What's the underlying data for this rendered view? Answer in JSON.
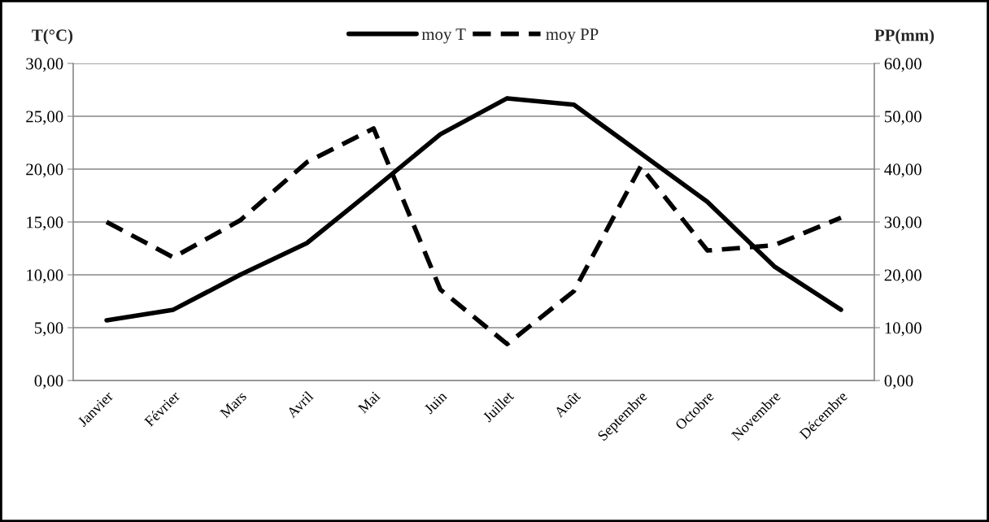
{
  "chart_data": {
    "type": "line",
    "ylabel": "T(°C)",
    "y2label": "PP(mm)",
    "categories": [
      "Janvier",
      "Février",
      "Mars",
      "Avril",
      "Mai",
      "Juin",
      "Juillet",
      "Août",
      "Septembre",
      "Octobre",
      "Novembre",
      "Décembre"
    ],
    "series": [
      {
        "name": "moy T",
        "color": "#000000",
        "line_style": "solid",
        "values": [
          5.7,
          6.7,
          10.0,
          13.0,
          18.1,
          23.3,
          26.7,
          26.1,
          21.5,
          16.9,
          10.8,
          6.7
        ]
      },
      {
        "name": "moy PP",
        "color": "#000000",
        "line_style": "dashed",
        "axis": "y2",
        "values": [
          30.0,
          23.3,
          30.3,
          41.3,
          47.7,
          17.2,
          6.9,
          16.9,
          40.5,
          24.6,
          25.6,
          30.8
        ]
      }
    ],
    "ylim": [
      0,
      30
    ],
    "yticks": [
      {
        "value": 0,
        "label": "0,00"
      },
      {
        "value": 5,
        "label": "5,00"
      },
      {
        "value": 10,
        "label": "10,00"
      },
      {
        "value": 15,
        "label": "15,00"
      },
      {
        "value": 20,
        "label": "20,00"
      },
      {
        "value": 25,
        "label": "25,00"
      },
      {
        "value": 30,
        "label": "30,00"
      }
    ],
    "y2lim": [
      0,
      60
    ],
    "y2ticks": [
      {
        "value": 0,
        "label": "0,00"
      },
      {
        "value": 10,
        "label": "10,00"
      },
      {
        "value": 20,
        "label": "20,00"
      },
      {
        "value": 30,
        "label": "30,00"
      },
      {
        "value": 40,
        "label": "40,00"
      },
      {
        "value": 50,
        "label": "50,00"
      },
      {
        "value": 60,
        "label": "60,00"
      }
    ],
    "grid": "y",
    "legend": "top",
    "marker": "none"
  }
}
